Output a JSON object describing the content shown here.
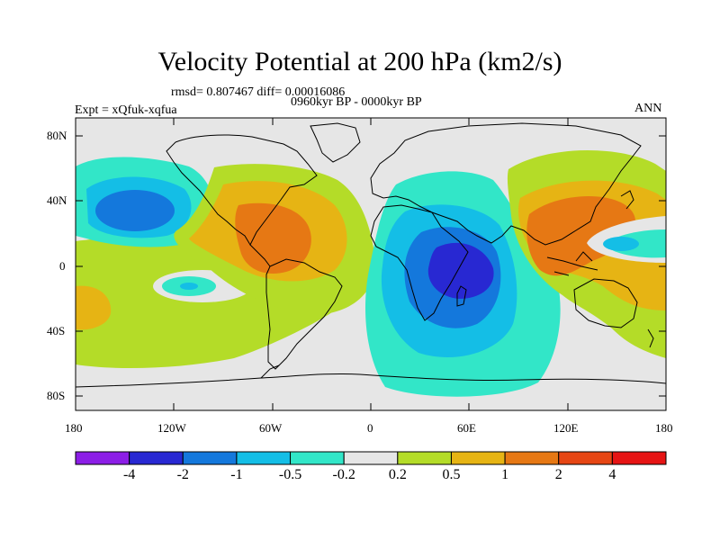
{
  "title": "Velocity Potential at 200 hPa (km2/s)",
  "stats": "rmsd= 0.807467 diff= 0.00016086",
  "period": "0960kyr BP - 0000kyr BP",
  "experiment": "Expt = xQfuk-xqfua",
  "season": "ANN",
  "lat_labels": [
    "80N",
    "40N",
    "0",
    "40S",
    "80S"
  ],
  "lon_labels": [
    "180",
    "120W",
    "60W",
    "0",
    "60E",
    "120E",
    "180"
  ],
  "colorbar": {
    "labels": [
      "-4",
      "-2",
      "-1",
      "-0.5",
      "-0.2",
      "0.2",
      "0.5",
      "1",
      "2",
      "4"
    ],
    "colors": [
      "#8c1ee6",
      "#2828d2",
      "#1478dc",
      "#14bee6",
      "#32e6c8",
      "#e6e6e6",
      "#b4dc28",
      "#e6b414",
      "#e67814",
      "#e64614",
      "#e61414"
    ]
  },
  "map_colors": {
    "neutral": "#e6e6e6",
    "neg1": "#32e6c8",
    "neg2": "#14bee6",
    "neg3": "#1478dc",
    "neg4": "#2828d2",
    "pos1": "#b4dc28",
    "pos2": "#e6b414",
    "pos3": "#e67814"
  }
}
